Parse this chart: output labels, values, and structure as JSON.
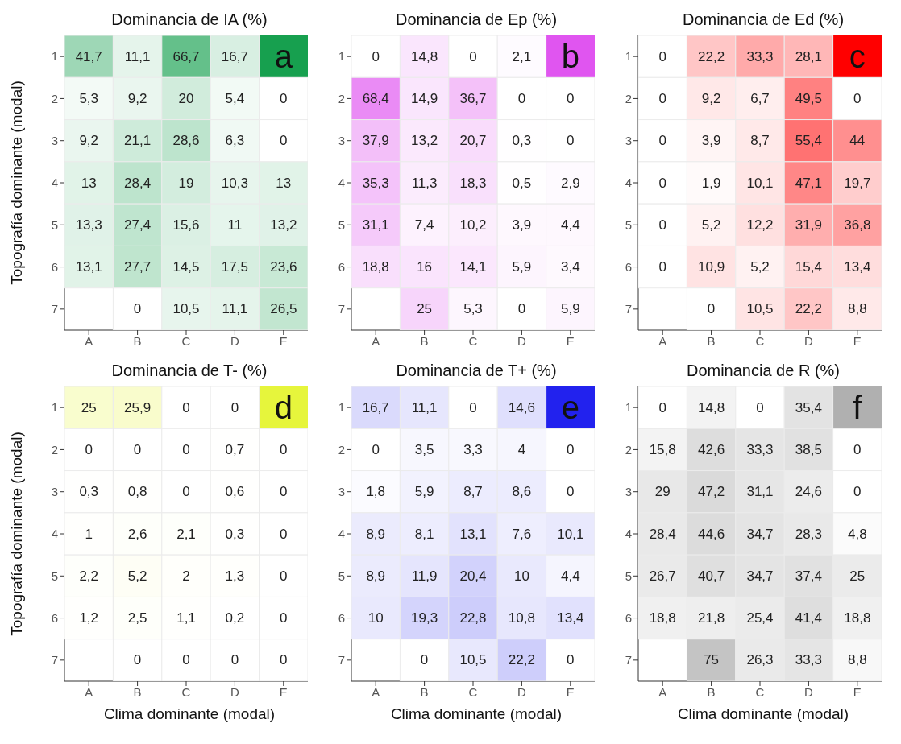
{
  "chart_data": [
    {
      "type": "heatmap",
      "title": "Dominancia de IA (%)",
      "ylabel": "Topografía dominante (modal)",
      "color": "#17a04f",
      "categories": [
        "A",
        "B",
        "C",
        "D",
        "E"
      ],
      "y_categories": [
        "1",
        "2",
        "3",
        "4",
        "5",
        "6",
        "7"
      ],
      "cells": [
        [
          41.7,
          11.1,
          66.7,
          16.7,
          null
        ],
        [
          5.3,
          9.2,
          20,
          5.4,
          0
        ],
        [
          9.2,
          21.1,
          28.6,
          6.3,
          0
        ],
        [
          13,
          28.4,
          19,
          10.3,
          13
        ],
        [
          13.3,
          27.4,
          15.6,
          11,
          13.2
        ],
        [
          13.1,
          27.7,
          14.5,
          17.5,
          23.6
        ],
        [
          null,
          0,
          10.5,
          11.1,
          26.5
        ]
      ],
      "cell_labels": [
        [
          "41,7",
          "11,1",
          "66,7",
          "16,7",
          null
        ],
        [
          "5,3",
          "9,2",
          "20",
          "5,4",
          "0"
        ],
        [
          "9,2",
          "21,1",
          "28,6",
          "6,3",
          "0"
        ],
        [
          "13",
          "28,4",
          "19",
          "10,3",
          "13"
        ],
        [
          "13,3",
          "27,4",
          "15,6",
          "11",
          "13,2"
        ],
        [
          "13,1",
          "27,7",
          "14,5",
          "17,5",
          "23,6"
        ],
        [
          null,
          "0",
          "10,5",
          "11,1",
          "26,5"
        ]
      ],
      "annotations": [
        "a"
      ]
    },
    {
      "type": "heatmap",
      "title": "Dominancia de Ep (%)",
      "color": "#e055f0",
      "categories": [
        "A",
        "B",
        "C",
        "D",
        "E"
      ],
      "y_categories": [
        "1",
        "2",
        "3",
        "4",
        "5",
        "6",
        "7"
      ],
      "cells": [
        [
          0,
          14.8,
          0,
          2.1,
          null
        ],
        [
          68.4,
          14.9,
          36.7,
          0,
          0
        ],
        [
          37.9,
          13.2,
          20.7,
          0.3,
          0
        ],
        [
          35.3,
          11.3,
          18.3,
          0.5,
          2.9
        ],
        [
          31.1,
          7.4,
          10.2,
          3.9,
          4.4
        ],
        [
          18.8,
          16,
          14.1,
          5.9,
          3.4
        ],
        [
          null,
          25,
          5.3,
          0,
          5.9
        ]
      ],
      "cell_labels": [
        [
          "0",
          "14,8",
          "0",
          "2,1",
          null
        ],
        [
          "68,4",
          "14,9",
          "36,7",
          "0",
          "0"
        ],
        [
          "37,9",
          "13,2",
          "20,7",
          "0,3",
          "0"
        ],
        [
          "35,3",
          "11,3",
          "18,3",
          "0,5",
          "2,9"
        ],
        [
          "31,1",
          "7,4",
          "10,2",
          "3,9",
          "4,4"
        ],
        [
          "18,8",
          "16",
          "14,1",
          "5,9",
          "3,4"
        ],
        [
          null,
          "25",
          "5,3",
          "0",
          "5,9"
        ]
      ],
      "annotations": [
        "b"
      ]
    },
    {
      "type": "heatmap",
      "title": "Dominancia de Ed (%)",
      "color": "#ff0000",
      "categories": [
        "A",
        "B",
        "C",
        "D",
        "E"
      ],
      "y_categories": [
        "1",
        "2",
        "3",
        "4",
        "5",
        "6",
        "7"
      ],
      "cells": [
        [
          0,
          22.2,
          33.3,
          28.1,
          null
        ],
        [
          0,
          9.2,
          6.7,
          49.5,
          0
        ],
        [
          0,
          3.9,
          8.7,
          55.4,
          44
        ],
        [
          0,
          1.9,
          10.1,
          47.1,
          19.7
        ],
        [
          0,
          5.2,
          12.2,
          31.9,
          36.8
        ],
        [
          0,
          10.9,
          5.2,
          15.4,
          13.4
        ],
        [
          null,
          0,
          10.5,
          22.2,
          8.8
        ]
      ],
      "cell_labels": [
        [
          "0",
          "22,2",
          "33,3",
          "28,1",
          null
        ],
        [
          "0",
          "9,2",
          "6,7",
          "49,5",
          "0"
        ],
        [
          "0",
          "3,9",
          "8,7",
          "55,4",
          "44"
        ],
        [
          "0",
          "1,9",
          "10,1",
          "47,1",
          "19,7"
        ],
        [
          "0",
          "5,2",
          "12,2",
          "31,9",
          "36,8"
        ],
        [
          "0",
          "10,9",
          "5,2",
          "15,4",
          "13,4"
        ],
        [
          null,
          "0",
          "10,5",
          "22,2",
          "8,8"
        ]
      ],
      "annotations": [
        "c"
      ]
    },
    {
      "type": "heatmap",
      "title": "Dominancia de T- (%)",
      "xlabel": "Clima dominante (modal)",
      "ylabel": "Topografía dominante (modal)",
      "color": "#e6f53c",
      "categories": [
        "A",
        "B",
        "C",
        "D",
        "E"
      ],
      "y_categories": [
        "1",
        "2",
        "3",
        "4",
        "5",
        "6",
        "7"
      ],
      "cells": [
        [
          25,
          25.9,
          0,
          0,
          null
        ],
        [
          0,
          0,
          0,
          0.7,
          0
        ],
        [
          0.3,
          0.8,
          0,
          0.6,
          0
        ],
        [
          1,
          2.6,
          2.1,
          0.3,
          0
        ],
        [
          2.2,
          5.2,
          2,
          1.3,
          0
        ],
        [
          1.2,
          2.5,
          1.1,
          0.2,
          0
        ],
        [
          null,
          0,
          0,
          0,
          0
        ]
      ],
      "cell_labels": [
        [
          "25",
          "25,9",
          "0",
          "0",
          null
        ],
        [
          "0",
          "0",
          "0",
          "0,7",
          "0"
        ],
        [
          "0,3",
          "0,8",
          "0",
          "0,6",
          "0"
        ],
        [
          "1",
          "2,6",
          "2,1",
          "0,3",
          "0"
        ],
        [
          "2,2",
          "5,2",
          "2",
          "1,3",
          "0"
        ],
        [
          "1,2",
          "2,5",
          "1,1",
          "0,2",
          "0"
        ],
        [
          null,
          "0",
          "0",
          "0",
          "0"
        ]
      ],
      "annotations": [
        "d"
      ]
    },
    {
      "type": "heatmap",
      "title": "Dominancia de T+ (%)",
      "xlabel": "Clima dominante (modal)",
      "color": "#2222ee",
      "categories": [
        "A",
        "B",
        "C",
        "D",
        "E"
      ],
      "y_categories": [
        "1",
        "2",
        "3",
        "4",
        "5",
        "6",
        "7"
      ],
      "cells": [
        [
          16.7,
          11.1,
          0,
          14.6,
          null
        ],
        [
          0,
          3.5,
          3.3,
          4,
          0
        ],
        [
          1.8,
          5.9,
          8.7,
          8.6,
          0
        ],
        [
          8.9,
          8.1,
          13.1,
          7.6,
          10.1
        ],
        [
          8.9,
          11.9,
          20.4,
          10,
          4.4
        ],
        [
          10,
          19.3,
          22.8,
          10.8,
          13.4
        ],
        [
          null,
          0,
          10.5,
          22.2,
          0
        ]
      ],
      "cell_labels": [
        [
          "16,7",
          "11,1",
          "0",
          "14,6",
          null
        ],
        [
          "0",
          "3,5",
          "3,3",
          "4",
          "0"
        ],
        [
          "1,8",
          "5,9",
          "8,7",
          "8,6",
          "0"
        ],
        [
          "8,9",
          "8,1",
          "13,1",
          "7,6",
          "10,1"
        ],
        [
          "8,9",
          "11,9",
          "20,4",
          "10",
          "4,4"
        ],
        [
          "10",
          "19,3",
          "22,8",
          "10,8",
          "13,4"
        ],
        [
          null,
          "0",
          "10,5",
          "22,2",
          "0"
        ]
      ],
      "annotations": [
        "e"
      ]
    },
    {
      "type": "heatmap",
      "title": "Dominancia de R (%)",
      "xlabel": "Clima dominante (modal)",
      "color": "#b0b0b0",
      "categories": [
        "A",
        "B",
        "C",
        "D",
        "E"
      ],
      "y_categories": [
        "1",
        "2",
        "3",
        "4",
        "5",
        "6",
        "7"
      ],
      "cells": [
        [
          0,
          14.8,
          0,
          35.4,
          null
        ],
        [
          15.8,
          42.6,
          33.3,
          38.5,
          0
        ],
        [
          29,
          47.2,
          31.1,
          24.6,
          0
        ],
        [
          28.4,
          44.6,
          34.7,
          28.3,
          4.8
        ],
        [
          26.7,
          40.7,
          34.7,
          37.4,
          25
        ],
        [
          18.8,
          21.8,
          25.4,
          41.4,
          18.8
        ],
        [
          null,
          75,
          26.3,
          33.3,
          8.8
        ]
      ],
      "cell_labels": [
        [
          "0",
          "14,8",
          "0",
          "35,4",
          null
        ],
        [
          "15,8",
          "42,6",
          "33,3",
          "38,5",
          "0"
        ],
        [
          "29",
          "47,2",
          "31,1",
          "24,6",
          "0"
        ],
        [
          "28,4",
          "44,6",
          "34,7",
          "28,3",
          "4,8"
        ],
        [
          "26,7",
          "40,7",
          "34,7",
          "37,4",
          "25"
        ],
        [
          "18,8",
          "21,8",
          "25,4",
          "41,4",
          "18,8"
        ],
        [
          null,
          "75",
          "26,3",
          "33,3",
          "8,8"
        ]
      ],
      "annotations": [
        "f"
      ]
    }
  ]
}
